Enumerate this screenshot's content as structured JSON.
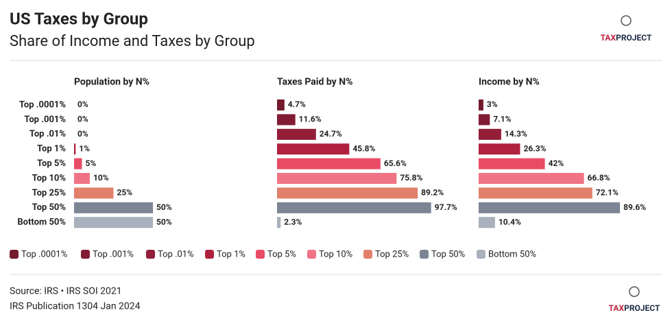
{
  "header": {
    "title": "US Taxes by Group",
    "subtitle": "Share of Income and Taxes by Group",
    "logo": [
      "TAX",
      "PROJECT"
    ]
  },
  "chart_data": {
    "type": "bar",
    "orientation": "horizontal",
    "categories": [
      "Top .0001%",
      "Top .001%",
      "Top .01%",
      "Top 1%",
      "Top 5%",
      "Top 10%",
      "Top 25%",
      "Top 50%",
      "Bottom 50%"
    ],
    "colors": [
      "#731a2c",
      "#821c33",
      "#921e38",
      "#b0213f",
      "#e84c66",
      "#f07485",
      "#e2806c",
      "#7b8594",
      "#a9b1bc"
    ],
    "xlim": [
      0,
      100
    ],
    "series": [
      {
        "name": "Population by N%",
        "values": [
          0,
          0,
          0,
          1,
          5,
          10,
          25,
          50,
          50
        ],
        "value_labels": [
          "0%",
          "0%",
          "0%",
          "1%",
          "5%",
          "10%",
          "25%",
          "50%",
          "50%"
        ]
      },
      {
        "name": "Taxes Paid by N%",
        "values": [
          4.7,
          11.6,
          24.7,
          45.8,
          65.6,
          75.8,
          89.2,
          97.7,
          2.3
        ],
        "value_labels": [
          "4.7%",
          "11.6%",
          "24.7%",
          "45.8%",
          "65.6%",
          "75.8%",
          "89.2%",
          "97.7%",
          "2.3%"
        ]
      },
      {
        "name": "Income by N%",
        "values": [
          3,
          7.1,
          14.3,
          26.3,
          42,
          66.8,
          72.1,
          89.6,
          10.4
        ],
        "value_labels": [
          "3%",
          "7.1%",
          "14.3%",
          "26.3%",
          "42%",
          "66.8%",
          "72.1%",
          "89.6%",
          "10.4%"
        ]
      }
    ]
  },
  "source": [
    "Source: IRS • IRS SOI 2021",
    "IRS Publication 1304 Jan 2024"
  ]
}
